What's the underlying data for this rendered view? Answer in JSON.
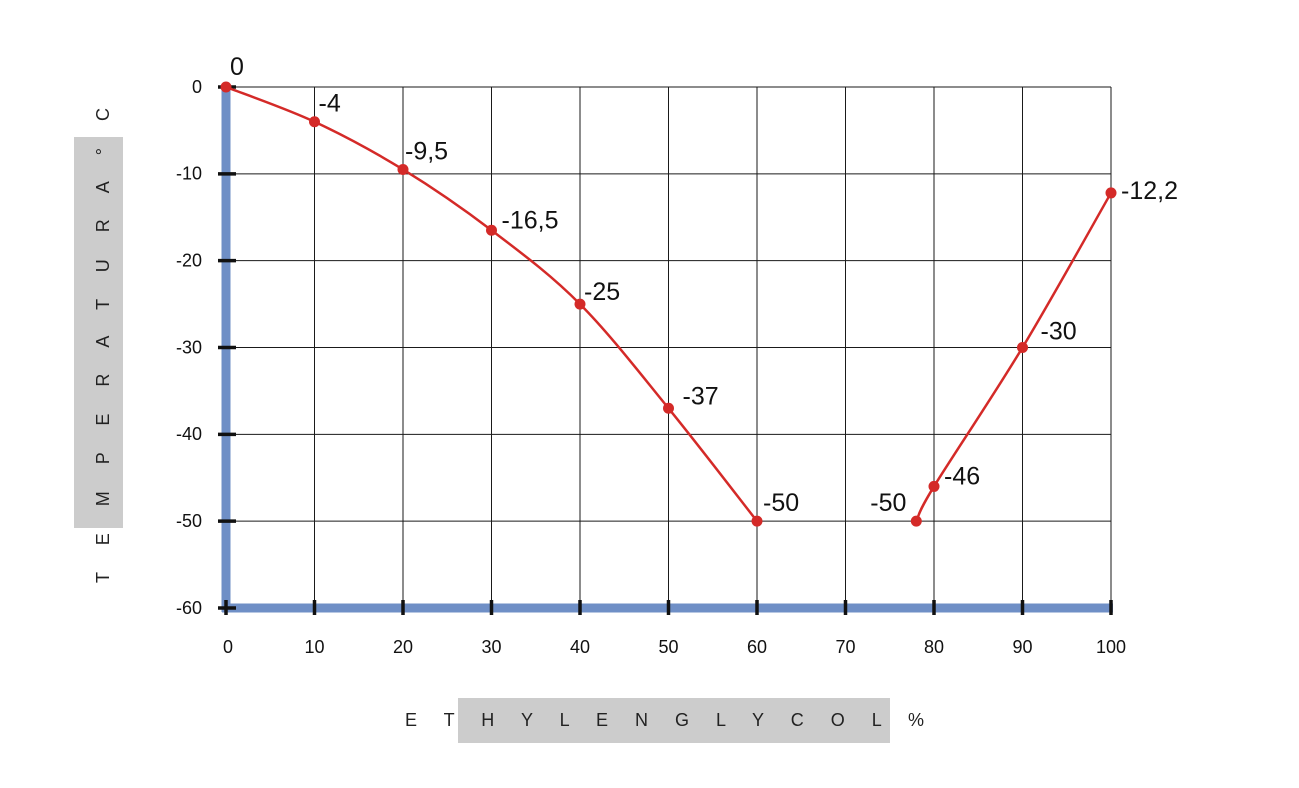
{
  "chart_data": {
    "type": "line",
    "xlabel": "E T H Y L E N G L Y C O L   %",
    "ylabel": "T E M P E R A T U R A   ° C",
    "xlim": [
      0,
      100
    ],
    "ylim": [
      -60,
      0
    ],
    "grid": true,
    "x_ticks": [
      0,
      10,
      20,
      30,
      40,
      50,
      60,
      70,
      80,
      90,
      100
    ],
    "y_ticks": [
      0,
      -10,
      -20,
      -30,
      -40,
      -50,
      -60
    ],
    "x_tick_labels": [
      "0",
      "10",
      "20",
      "30",
      "40",
      "50",
      "60",
      "70",
      "80",
      "90",
      "100"
    ],
    "y_tick_labels": [
      "0",
      "-10",
      "-20",
      "-30",
      "-40",
      "-50",
      "-60"
    ],
    "series": [
      {
        "values_x": [
          0,
          10,
          20,
          30,
          40,
          50,
          60
        ],
        "values_y": [
          0,
          -4,
          -9.5,
          -16.5,
          -25,
          -37,
          -50
        ],
        "labels": [
          "0",
          "-4",
          "-9,5",
          "-16,5",
          "-25",
          "-37",
          "-50"
        ]
      },
      {
        "values_x": [
          78,
          80,
          90,
          100
        ],
        "values_y": [
          -50,
          -46,
          -30,
          -12.2
        ],
        "labels": [
          "-50",
          "-46",
          "-30",
          "-12,2"
        ]
      }
    ],
    "colors": {
      "line": "#d42a28",
      "axis": "#6f8fc6",
      "grid": "#1a1a1a",
      "label_box": "#cccccc"
    }
  }
}
